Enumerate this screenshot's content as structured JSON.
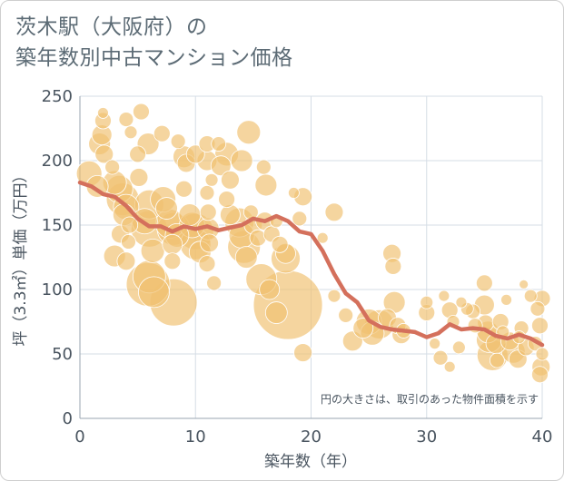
{
  "title_line1": "茨木駅（大阪府）の",
  "title_line2": "築年数別中古マンション価格",
  "chart_data": {
    "type": "scatter",
    "xlabel": "築年数（年）",
    "ylabel": "坪（3.3㎡）単価（万円）",
    "xlim": [
      0,
      40
    ],
    "ylim": [
      0,
      250
    ],
    "xticks": [
      "0",
      "10",
      "20",
      "30",
      "40"
    ],
    "yticks": [
      "0",
      "50",
      "100",
      "150",
      "200",
      "250"
    ],
    "note": "円の大きさは、取引のあった物件面積を示す",
    "grid": true,
    "colors": {
      "bubble": "#f0c172",
      "line": "#d4705c",
      "grid": "#d5dde6"
    },
    "trend_line": {
      "x": [
        0,
        1,
        2,
        3,
        4,
        5,
        6,
        7,
        8,
        9,
        10,
        11,
        12,
        13,
        14,
        15,
        16,
        17,
        18,
        19,
        20,
        21,
        22,
        23,
        24,
        25,
        26,
        27,
        28,
        29,
        30,
        31,
        32,
        33,
        34,
        35,
        36,
        37,
        38,
        39,
        40
      ],
      "y": [
        183,
        180,
        174,
        172,
        165,
        155,
        149,
        149,
        145,
        149,
        147,
        149,
        146,
        148,
        150,
        155,
        153,
        157,
        153,
        145,
        143,
        130,
        112,
        97,
        90,
        76,
        71,
        69,
        68,
        67,
        63,
        66,
        73,
        69,
        70,
        69,
        64,
        62,
        65,
        62,
        57
      ]
    },
    "bubbles": [
      {
        "x": 0.8,
        "y": 190,
        "s": 14
      },
      {
        "x": 1.5,
        "y": 180,
        "s": 12
      },
      {
        "x": 2.0,
        "y": 237,
        "s": 6
      },
      {
        "x": 2.0,
        "y": 231,
        "s": 9
      },
      {
        "x": 1.9,
        "y": 220,
        "s": 11
      },
      {
        "x": 1.7,
        "y": 213,
        "s": 12
      },
      {
        "x": 2.1,
        "y": 205,
        "s": 10
      },
      {
        "x": 2.8,
        "y": 195,
        "s": 8
      },
      {
        "x": 3.0,
        "y": 183,
        "s": 13
      },
      {
        "x": 3.4,
        "y": 178,
        "s": 15
      },
      {
        "x": 3.7,
        "y": 170,
        "s": 18
      },
      {
        "x": 4.0,
        "y": 164,
        "s": 14
      },
      {
        "x": 3.8,
        "y": 158,
        "s": 12
      },
      {
        "x": 4.3,
        "y": 150,
        "s": 9
      },
      {
        "x": 3.5,
        "y": 143,
        "s": 10
      },
      {
        "x": 4.2,
        "y": 137,
        "s": 8
      },
      {
        "x": 3.0,
        "y": 126,
        "s": 12
      },
      {
        "x": 4.0,
        "y": 122,
        "s": 10
      },
      {
        "x": 4.0,
        "y": 232,
        "s": 8
      },
      {
        "x": 4.4,
        "y": 222,
        "s": 7
      },
      {
        "x": 5.0,
        "y": 205,
        "s": 9
      },
      {
        "x": 5.1,
        "y": 187,
        "s": 10
      },
      {
        "x": 5.3,
        "y": 238,
        "s": 9
      },
      {
        "x": 5.9,
        "y": 213,
        "s": 12
      },
      {
        "x": 6.0,
        "y": 166,
        "s": 16
      },
      {
        "x": 6.0,
        "y": 147,
        "s": 20
      },
      {
        "x": 5.6,
        "y": 153,
        "s": 14
      },
      {
        "x": 6.3,
        "y": 130,
        "s": 13
      },
      {
        "x": 6.0,
        "y": 110,
        "s": 18
      },
      {
        "x": 5.9,
        "y": 104,
        "s": 24
      },
      {
        "x": 6.4,
        "y": 98,
        "s": 17
      },
      {
        "x": 7.1,
        "y": 221,
        "s": 9
      },
      {
        "x": 7.2,
        "y": 170,
        "s": 14
      },
      {
        "x": 7.5,
        "y": 163,
        "s": 12
      },
      {
        "x": 7.8,
        "y": 151,
        "s": 16
      },
      {
        "x": 8.1,
        "y": 147,
        "s": 18
      },
      {
        "x": 8.4,
        "y": 142,
        "s": 13
      },
      {
        "x": 8.0,
        "y": 135,
        "s": 11
      },
      {
        "x": 8.0,
        "y": 122,
        "s": 9
      },
      {
        "x": 8.1,
        "y": 90,
        "s": 26
      },
      {
        "x": 8.5,
        "y": 215,
        "s": 8
      },
      {
        "x": 9.0,
        "y": 203,
        "s": 12
      },
      {
        "x": 9.2,
        "y": 198,
        "s": 10
      },
      {
        "x": 9.0,
        "y": 178,
        "s": 9
      },
      {
        "x": 9.5,
        "y": 158,
        "s": 12
      },
      {
        "x": 9.7,
        "y": 150,
        "s": 14
      },
      {
        "x": 10.0,
        "y": 145,
        "s": 20
      },
      {
        "x": 10.0,
        "y": 135,
        "s": 17
      },
      {
        "x": 10.4,
        "y": 129,
        "s": 12
      },
      {
        "x": 10.0,
        "y": 205,
        "s": 10
      },
      {
        "x": 11.0,
        "y": 213,
        "s": 9
      },
      {
        "x": 11.0,
        "y": 200,
        "s": 11
      },
      {
        "x": 11.4,
        "y": 185,
        "s": 7
      },
      {
        "x": 11.0,
        "y": 175,
        "s": 8
      },
      {
        "x": 11.1,
        "y": 160,
        "s": 9
      },
      {
        "x": 11.1,
        "y": 147,
        "s": 12
      },
      {
        "x": 11.2,
        "y": 136,
        "s": 10
      },
      {
        "x": 11.0,
        "y": 120,
        "s": 9
      },
      {
        "x": 11.6,
        "y": 105,
        "s": 8
      },
      {
        "x": 12.0,
        "y": 213,
        "s": 8
      },
      {
        "x": 12.2,
        "y": 196,
        "s": 11
      },
      {
        "x": 12.7,
        "y": 205,
        "s": 13
      },
      {
        "x": 13.0,
        "y": 185,
        "s": 10
      },
      {
        "x": 12.7,
        "y": 170,
        "s": 9
      },
      {
        "x": 13.0,
        "y": 158,
        "s": 11
      },
      {
        "x": 13.8,
        "y": 152,
        "s": 16
      },
      {
        "x": 14.0,
        "y": 142,
        "s": 14
      },
      {
        "x": 14.2,
        "y": 133,
        "s": 18
      },
      {
        "x": 14.4,
        "y": 125,
        "s": 12
      },
      {
        "x": 14.0,
        "y": 200,
        "s": 12
      },
      {
        "x": 14.6,
        "y": 222,
        "s": 13
      },
      {
        "x": 14.8,
        "y": 160,
        "s": 8
      },
      {
        "x": 15.0,
        "y": 150,
        "s": 10
      },
      {
        "x": 15.4,
        "y": 140,
        "s": 9
      },
      {
        "x": 15.9,
        "y": 195,
        "s": 8
      },
      {
        "x": 16.1,
        "y": 181,
        "s": 12
      },
      {
        "x": 16.0,
        "y": 153,
        "s": 10
      },
      {
        "x": 15.7,
        "y": 108,
        "s": 17
      },
      {
        "x": 16.4,
        "y": 100,
        "s": 11
      },
      {
        "x": 16.6,
        "y": 143,
        "s": 9
      },
      {
        "x": 17.0,
        "y": 153,
        "s": 7
      },
      {
        "x": 17.3,
        "y": 135,
        "s": 9
      },
      {
        "x": 17.8,
        "y": 128,
        "s": 11
      },
      {
        "x": 17.8,
        "y": 124,
        "s": 16
      },
      {
        "x": 18.0,
        "y": 88,
        "s": 38
      },
      {
        "x": 17.0,
        "y": 82,
        "s": 12
      },
      {
        "x": 18.5,
        "y": 175,
        "s": 6
      },
      {
        "x": 19.0,
        "y": 155,
        "s": 8
      },
      {
        "x": 19.3,
        "y": 172,
        "s": 10
      },
      {
        "x": 19.3,
        "y": 51,
        "s": 10
      },
      {
        "x": 21.0,
        "y": 140,
        "s": 6
      },
      {
        "x": 22.0,
        "y": 160,
        "s": 10
      },
      {
        "x": 22.0,
        "y": 95,
        "s": 7
      },
      {
        "x": 23.0,
        "y": 80,
        "s": 8
      },
      {
        "x": 23.6,
        "y": 60,
        "s": 11
      },
      {
        "x": 24.5,
        "y": 70,
        "s": 11
      },
      {
        "x": 25.0,
        "y": 75,
        "s": 14
      },
      {
        "x": 25.3,
        "y": 66,
        "s": 13
      },
      {
        "x": 25.9,
        "y": 73,
        "s": 16
      },
      {
        "x": 26.6,
        "y": 78,
        "s": 10
      },
      {
        "x": 27.0,
        "y": 128,
        "s": 10
      },
      {
        "x": 27.1,
        "y": 118,
        "s": 9
      },
      {
        "x": 27.2,
        "y": 90,
        "s": 12
      },
      {
        "x": 27.5,
        "y": 72,
        "s": 9
      },
      {
        "x": 27.8,
        "y": 65,
        "s": 10
      },
      {
        "x": 28.0,
        "y": 68,
        "s": 8
      },
      {
        "x": 30.0,
        "y": 90,
        "s": 7
      },
      {
        "x": 30.0,
        "y": 82,
        "s": 9
      },
      {
        "x": 30.7,
        "y": 58,
        "s": 6
      },
      {
        "x": 31.2,
        "y": 47,
        "s": 8
      },
      {
        "x": 31.5,
        "y": 95,
        "s": 6
      },
      {
        "x": 32.0,
        "y": 40,
        "s": 6
      },
      {
        "x": 32.0,
        "y": 84,
        "s": 9
      },
      {
        "x": 32.3,
        "y": 75,
        "s": 7
      },
      {
        "x": 32.8,
        "y": 55,
        "s": 7
      },
      {
        "x": 33.0,
        "y": 90,
        "s": 6
      },
      {
        "x": 33.5,
        "y": 85,
        "s": 7
      },
      {
        "x": 34.0,
        "y": 83,
        "s": 8
      },
      {
        "x": 34.2,
        "y": 72,
        "s": 8
      },
      {
        "x": 35.0,
        "y": 105,
        "s": 9
      },
      {
        "x": 35.0,
        "y": 88,
        "s": 11
      },
      {
        "x": 35.1,
        "y": 74,
        "s": 9
      },
      {
        "x": 35.3,
        "y": 67,
        "s": 12
      },
      {
        "x": 35.4,
        "y": 61,
        "s": 14
      },
      {
        "x": 35.7,
        "y": 49,
        "s": 17
      },
      {
        "x": 36.0,
        "y": 58,
        "s": 11
      },
      {
        "x": 36.1,
        "y": 45,
        "s": 8
      },
      {
        "x": 36.4,
        "y": 75,
        "s": 9
      },
      {
        "x": 36.6,
        "y": 67,
        "s": 7
      },
      {
        "x": 36.9,
        "y": 92,
        "s": 6
      },
      {
        "x": 37.2,
        "y": 60,
        "s": 10
      },
      {
        "x": 37.5,
        "y": 52,
        "s": 13
      },
      {
        "x": 37.9,
        "y": 46,
        "s": 10
      },
      {
        "x": 38.0,
        "y": 63,
        "s": 7
      },
      {
        "x": 38.2,
        "y": 70,
        "s": 8
      },
      {
        "x": 38.4,
        "y": 104,
        "s": 5
      },
      {
        "x": 38.6,
        "y": 55,
        "s": 9
      },
      {
        "x": 39.0,
        "y": 95,
        "s": 7
      },
      {
        "x": 39.4,
        "y": 58,
        "s": 8
      },
      {
        "x": 39.6,
        "y": 85,
        "s": 8
      },
      {
        "x": 39.8,
        "y": 72,
        "s": 9
      },
      {
        "x": 39.9,
        "y": 40,
        "s": 10
      },
      {
        "x": 39.8,
        "y": 34,
        "s": 9
      },
      {
        "x": 40.0,
        "y": 50,
        "s": 7
      },
      {
        "x": 40.0,
        "y": 93,
        "s": 9
      }
    ]
  }
}
